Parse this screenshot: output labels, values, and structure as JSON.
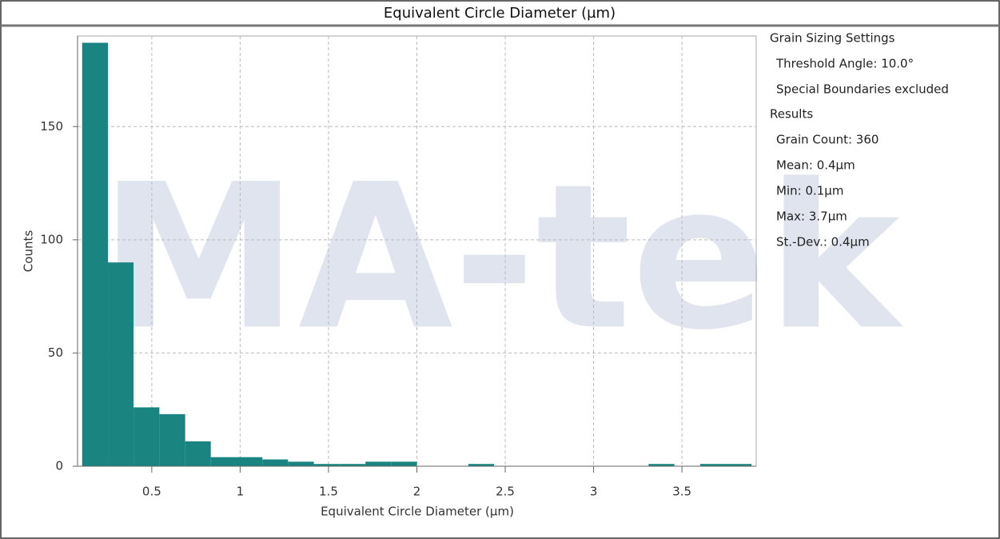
{
  "chart_data": {
    "type": "histogram",
    "title": "Equivalent Circle Diameter (µm)",
    "xlabel": "Equivalent Circle Diameter (µm)",
    "ylabel": "Counts",
    "bins": [
      0.106,
      0.252,
      0.397,
      0.543,
      0.689,
      0.834,
      0.98,
      1.126,
      1.271,
      1.417,
      1.563,
      1.709,
      1.854,
      2.0,
      2.146,
      2.291,
      2.437,
      2.583,
      2.728,
      2.874,
      3.02,
      3.165,
      3.311,
      3.457,
      3.603,
      3.748,
      3.894
    ],
    "counts": [
      187,
      90,
      26,
      23,
      11,
      4,
      4,
      3,
      2,
      1,
      1,
      2,
      2,
      0,
      0,
      1,
      0,
      0,
      0,
      0,
      0,
      0,
      1,
      0,
      1,
      1
    ],
    "color": "#1a8580",
    "xlim": [
      0.08,
      3.92
    ],
    "xticks": [
      0.5,
      1,
      1.5,
      2,
      2.5,
      3,
      3.5
    ],
    "ylim": [
      0,
      190
    ],
    "yticks": [
      0,
      50,
      100,
      150
    ],
    "grid": true,
    "watermark": "MA-tek"
  },
  "panel": [
    {
      "heading": "Grain Sizing Settings",
      "items": [
        "Threshold Angle: 10.0°",
        "Special Boundaries excluded"
      ]
    },
    {
      "heading": "Results",
      "items": [
        "Grain Count: 360",
        "Mean: 0.4µm",
        "Min: 0.1µm",
        "Max: 3.7µm",
        "St.-Dev.: 0.4µm"
      ]
    }
  ]
}
